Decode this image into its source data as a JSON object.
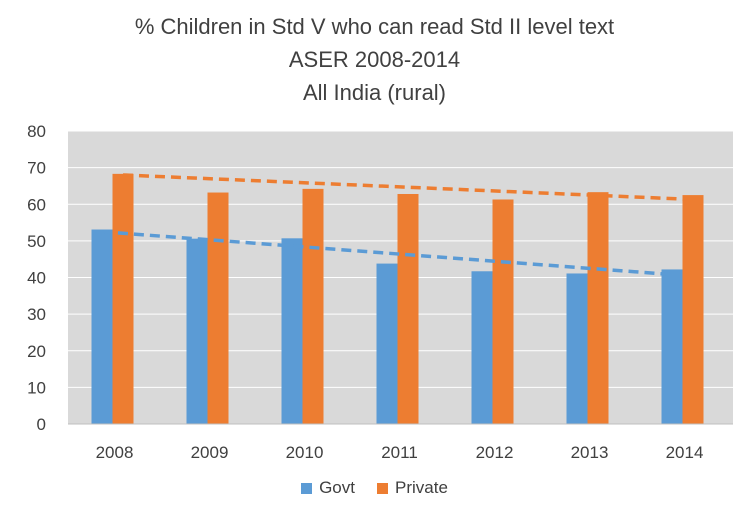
{
  "chart_data": {
    "type": "bar",
    "title": [
      "% Children in Std V who can read Std II level text",
      "ASER 2008-2014",
      "All India (rural)"
    ],
    "categories": [
      "2008",
      "2009",
      "2010",
      "2011",
      "2012",
      "2013",
      "2014"
    ],
    "series": [
      {
        "name": "Govt",
        "color": "#5B9BD5",
        "values": [
          53.1,
          50.6,
          50.7,
          43.8,
          41.7,
          41.1,
          42.2
        ]
      },
      {
        "name": "Private",
        "color": "#ED7D31",
        "values": [
          68.3,
          63.2,
          64.2,
          62.8,
          61.3,
          63.3,
          62.5
        ]
      }
    ],
    "trendlines": [
      {
        "series": "Govt",
        "style": "dashed",
        "start": 52.5,
        "end": 40.8
      },
      {
        "series": "Private",
        "style": "dashed",
        "start": 68.0,
        "end": 61.3
      }
    ],
    "ylim": [
      0,
      80
    ],
    "yticks": [
      "0",
      "10",
      "20",
      "30",
      "40",
      "50",
      "60",
      "70",
      "80"
    ],
    "xlabel": "",
    "ylabel": "",
    "legend_position": "bottom",
    "plot_background": "#D9D9D9"
  }
}
